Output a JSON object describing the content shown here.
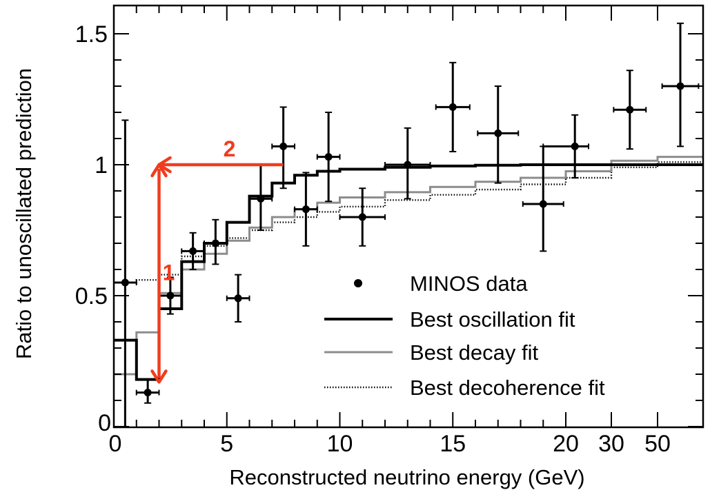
{
  "chart_data": {
    "type": "scatter",
    "xlabel": "Reconstructed neutrino energy (GeV)",
    "ylabel": "Ratio to unoscillated prediction",
    "x_axis_scale": "linear in energy from 0 to 20 GeV, compressed above 20 GeV",
    "xlim": [
      0,
      100
    ],
    "ylim": [
      0,
      1.55
    ],
    "x_ticks": [
      {
        "label": "0",
        "value": 0
      },
      {
        "label": "5",
        "value": 5
      },
      {
        "label": "10",
        "value": 10
      },
      {
        "label": "15",
        "value": 15
      },
      {
        "label": "20",
        "value": 20
      },
      {
        "label": "30",
        "value": 30
      },
      {
        "label": "50",
        "value": 50
      }
    ],
    "y_ticks": [
      {
        "label": "0",
        "value": 0
      },
      {
        "label": "0.5",
        "value": 0.5
      },
      {
        "label": "1",
        "value": 1
      },
      {
        "label": "1.5",
        "value": 1.5
      }
    ],
    "legend_position": "bottom-right",
    "series": [
      {
        "name": "MINOS data",
        "style": "points",
        "points": [
          {
            "x": 0.5,
            "y": 0.55,
            "xerr": 0.5,
            "ylo": 0.0,
            "yhi": 1.17
          },
          {
            "x": 1.5,
            "y": 0.13,
            "xerr": 0.5,
            "ylo": 0.09,
            "yhi": 0.18
          },
          {
            "x": 2.5,
            "y": 0.5,
            "xerr": 0.5,
            "ylo": 0.43,
            "yhi": 0.57
          },
          {
            "x": 3.5,
            "y": 0.67,
            "xerr": 0.5,
            "ylo": 0.6,
            "yhi": 0.74
          },
          {
            "x": 4.5,
            "y": 0.7,
            "xerr": 0.5,
            "ylo": 0.62,
            "yhi": 0.79
          },
          {
            "x": 5.5,
            "y": 0.49,
            "xerr": 0.5,
            "ylo": 0.4,
            "yhi": 0.58
          },
          {
            "x": 6.5,
            "y": 0.87,
            "xerr": 0.5,
            "ylo": 0.75,
            "yhi": 1.0
          },
          {
            "x": 7.5,
            "y": 1.07,
            "xerr": 0.5,
            "ylo": 0.91,
            "yhi": 1.22
          },
          {
            "x": 8.5,
            "y": 0.83,
            "xerr": 0.5,
            "ylo": 0.69,
            "yhi": 0.97
          },
          {
            "x": 9.5,
            "y": 1.03,
            "xerr": 0.5,
            "ylo": 0.86,
            "yhi": 1.2
          },
          {
            "x": 11,
            "y": 0.8,
            "xerr": 1.0,
            "ylo": 0.69,
            "yhi": 0.91
          },
          {
            "x": 13,
            "y": 1.0,
            "xerr": 1.0,
            "ylo": 0.87,
            "yhi": 1.14
          },
          {
            "x": 15,
            "y": 1.22,
            "xerr": 0.75,
            "ylo": 1.05,
            "yhi": 1.39
          },
          {
            "x": 17,
            "y": 1.12,
            "xerr": 0.9,
            "ylo": 0.93,
            "yhi": 1.3
          },
          {
            "x": 19,
            "y": 0.85,
            "xerr": 0.9,
            "ylo": 0.67,
            "yhi": 1.07
          },
          {
            "x": 22,
            "y": 1.07,
            "xerr": 3,
            "ylo": 0.95,
            "yhi": 1.19
          },
          {
            "x": 38,
            "y": 1.21,
            "xerr": 7,
            "ylo": 1.06,
            "yhi": 1.36
          },
          {
            "x": 75,
            "y": 1.3,
            "xerr": 20,
            "ylo": 1.07,
            "yhi": 1.54
          }
        ]
      },
      {
        "name": "Best oscillation fit",
        "style": "step",
        "edges": [
          0,
          1,
          2,
          3,
          4,
          5,
          6,
          7,
          8,
          9,
          10,
          12,
          14,
          16,
          18,
          20,
          30,
          50,
          100
        ],
        "values": [
          0.33,
          0.18,
          0.45,
          0.63,
          0.7,
          0.78,
          0.88,
          0.93,
          0.96,
          0.975,
          0.983,
          0.99,
          0.995,
          0.998,
          1.0,
          1.0,
          1.0,
          1.0
        ]
      },
      {
        "name": "Best decay fit",
        "style": "step",
        "edges": [
          0,
          1,
          2,
          3,
          4,
          5,
          6,
          7,
          8,
          9,
          10,
          12,
          14,
          16,
          18,
          20,
          30,
          50,
          100
        ],
        "values": [
          0.2,
          0.36,
          0.51,
          0.6,
          0.66,
          0.71,
          0.76,
          0.8,
          0.83,
          0.855,
          0.875,
          0.895,
          0.915,
          0.935,
          0.95,
          0.975,
          1.015,
          1.03
        ]
      },
      {
        "name": "Best decoherence fit",
        "style": "dotted-step",
        "edges": [
          0,
          1,
          2,
          3,
          4,
          5,
          6,
          7,
          8,
          9,
          10,
          12,
          14,
          16,
          18,
          20,
          30,
          50,
          100
        ],
        "values": [
          0.55,
          0.56,
          0.58,
          0.65,
          0.69,
          0.72,
          0.75,
          0.78,
          0.8,
          0.82,
          0.84,
          0.865,
          0.885,
          0.905,
          0.925,
          0.95,
          0.99,
          1.01
        ]
      }
    ],
    "annotations": [
      {
        "label": "1",
        "color": "#f03c1e",
        "kind": "vertical double arrow",
        "x": 2.0,
        "y_from": 0.17,
        "y_to": 1.0
      },
      {
        "label": "2",
        "color": "#f03c1e",
        "kind": "horizontal arrow",
        "y": 1.0,
        "x_from": 7.5,
        "x_to": 2.0
      }
    ]
  }
}
